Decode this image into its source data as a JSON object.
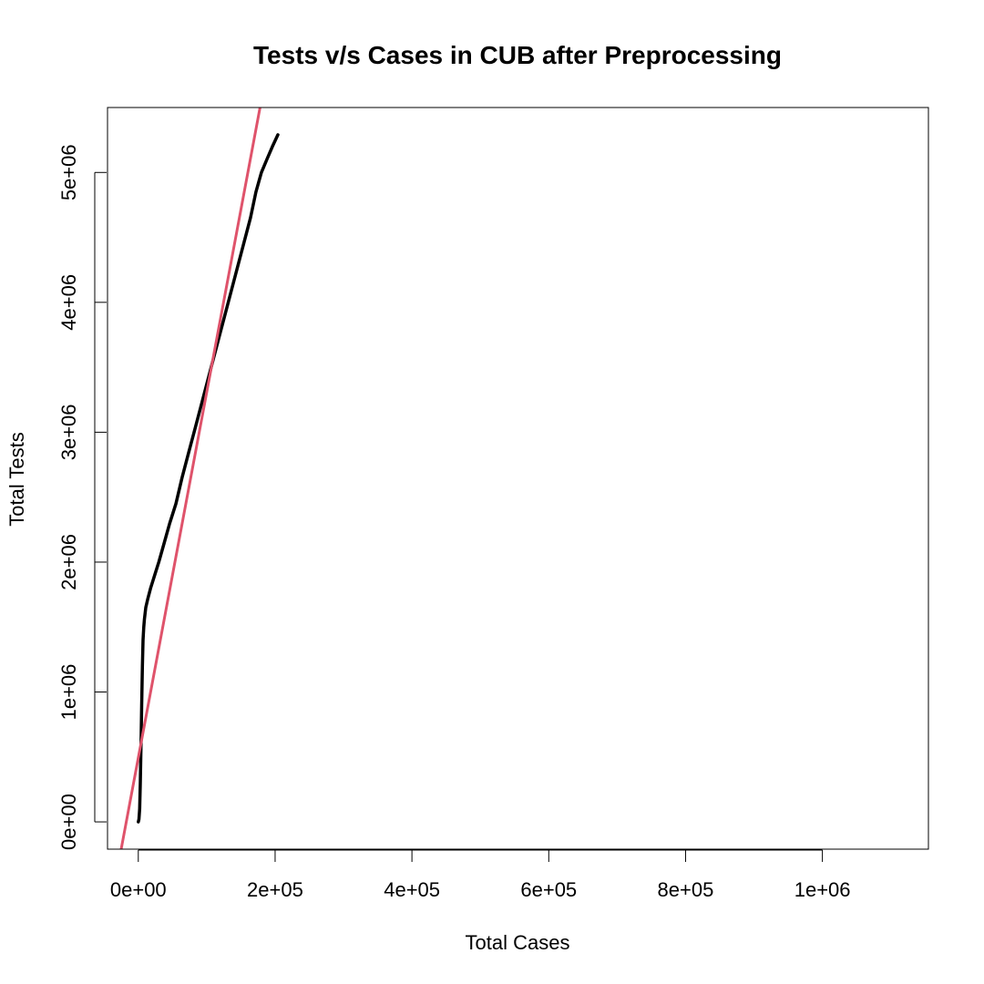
{
  "chart_data": {
    "type": "line",
    "title": "Tests v/s Cases in CUB after Preprocessing",
    "xlabel": "Total Cases",
    "ylabel": "Total Tests",
    "xlim": [
      -45000,
      1155000
    ],
    "ylim": [
      -210000,
      5500000
    ],
    "x_ticks": [
      {
        "value": 0,
        "label": "0e+00"
      },
      {
        "value": 200000,
        "label": "2e+05"
      },
      {
        "value": 400000,
        "label": "4e+05"
      },
      {
        "value": 600000,
        "label": "6e+05"
      },
      {
        "value": 800000,
        "label": "8e+05"
      },
      {
        "value": 1000000,
        "label": "1e+06"
      }
    ],
    "y_ticks": [
      {
        "value": 0,
        "label": "0e+00"
      },
      {
        "value": 1000000,
        "label": "1e+06"
      },
      {
        "value": 2000000,
        "label": "2e+06"
      },
      {
        "value": 3000000,
        "label": "3e+06"
      },
      {
        "value": 4000000,
        "label": "4e+06"
      },
      {
        "value": 5000000,
        "label": "5e+06"
      }
    ],
    "grid": false,
    "series": [
      {
        "color": "#000000",
        "x": [
          0,
          1000,
          2000,
          3000,
          4000,
          5000,
          6000,
          7000,
          8000,
          9000,
          11000,
          14000,
          18000,
          24000,
          30000,
          38000,
          46000,
          55000,
          64000,
          74000,
          84000,
          94000,
          104000,
          114000,
          124000,
          134000,
          144000,
          154000,
          164000,
          172000,
          180000,
          188000,
          196000,
          204000
        ],
        "y": [
          0,
          20000,
          100000,
          300000,
          600000,
          900000,
          1200000,
          1400000,
          1500000,
          1560000,
          1650000,
          1720000,
          1800000,
          1900000,
          2000000,
          2150000,
          2300000,
          2450000,
          2650000,
          2850000,
          3050000,
          3250000,
          3450000,
          3650000,
          3850000,
          4050000,
          4250000,
          4450000,
          4650000,
          4850000,
          5000000,
          5100000,
          5200000,
          5290000
        ]
      },
      {
        "color": "#DF536B",
        "x": [
          -25000,
          178000
        ],
        "y": [
          -210000,
          5500000
        ]
      }
    ]
  }
}
